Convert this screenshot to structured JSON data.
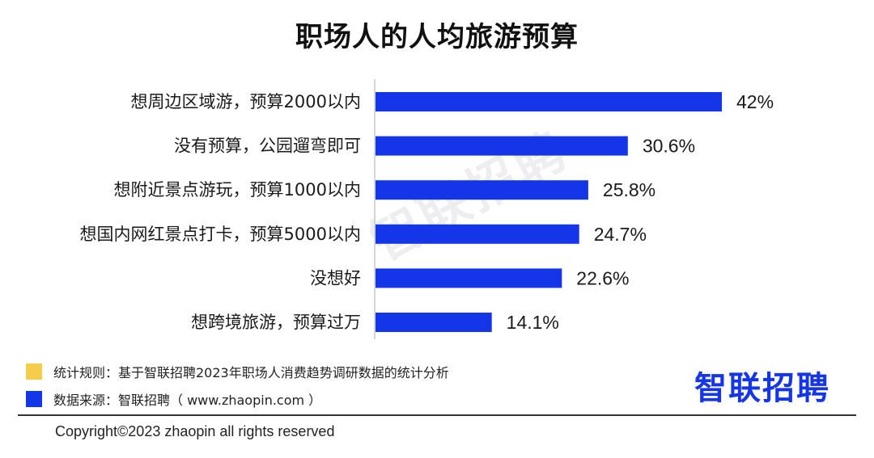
{
  "header": {
    "title": "职场人的人均旅游预算"
  },
  "chart_data": {
    "type": "bar",
    "orientation": "horizontal",
    "title": "职场人的人均旅游预算",
    "categories": [
      "想周边区域游，预算2000以内",
      "没有预算，公园遛弯即可",
      "想附近景点游玩，预算1000以内",
      "想国内网红景点打卡，预算5000以内",
      "没想好",
      "想跨境旅游，预算过万"
    ],
    "values": [
      42,
      30.6,
      25.8,
      24.7,
      22.6,
      14.1
    ],
    "value_labels": [
      "42%",
      "30.6%",
      "25.8%",
      "24.7%",
      "22.6%",
      "14.1%"
    ],
    "unit": "%",
    "xlim": [
      0,
      42
    ],
    "bar_color": "#1535e8",
    "grid": false,
    "legend": "none"
  },
  "watermark": {
    "text": "智联招聘"
  },
  "notes": [
    {
      "label": "统计规则：基于智联招聘2023年职场人消费趋势调研数据的统计分析",
      "color": "#f6cd4a"
    },
    {
      "label": "数据来源：智联招聘（ www.zhaopin.com ）",
      "color": "#1535e8"
    }
  ],
  "brand": {
    "logo_text": "智联招聘",
    "color": "#1535e8",
    "accent_color": "#f6cd4a"
  },
  "footer": {
    "copyright": "Copyright©2023 zhaopin all rights reserved"
  }
}
